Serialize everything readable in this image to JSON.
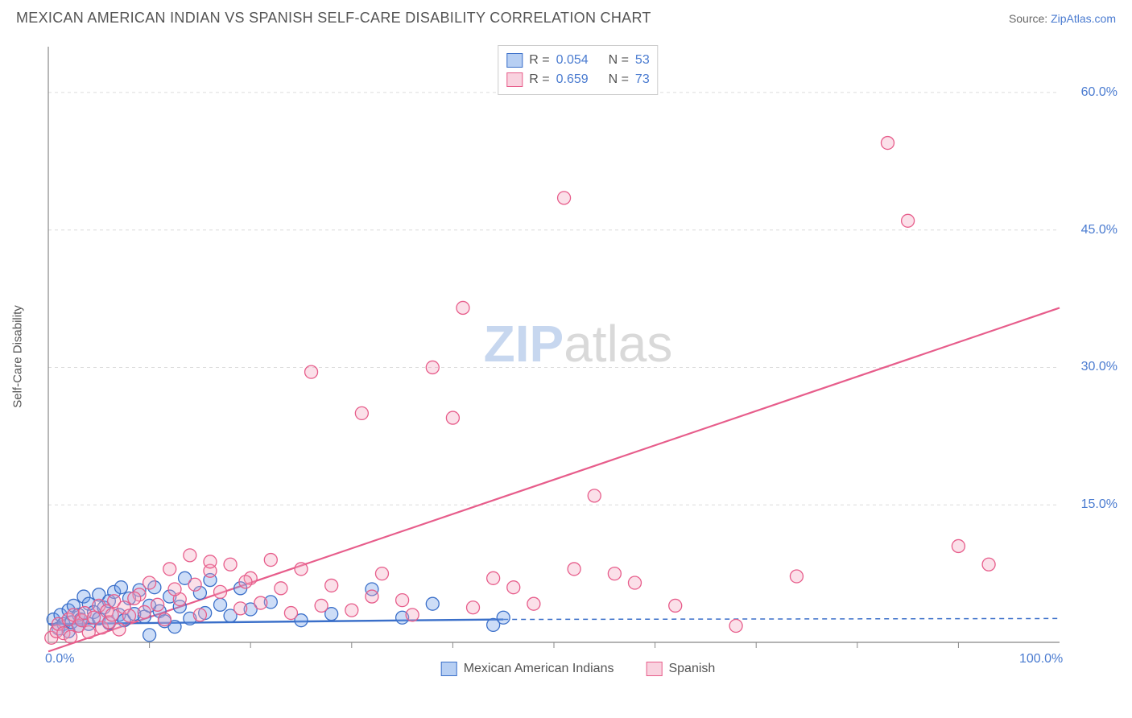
{
  "header": {
    "title": "MEXICAN AMERICAN INDIAN VS SPANISH SELF-CARE DISABILITY CORRELATION CHART",
    "source_label": "Source:",
    "source_name": "ZipAtlas.com"
  },
  "ylabel": "Self-Care Disability",
  "watermark": {
    "a": "ZIP",
    "b": "atlas"
  },
  "chart": {
    "type": "scatter",
    "xlim": [
      0,
      100
    ],
    "ylim": [
      0,
      65
    ],
    "ytick_values": [
      15,
      30,
      45,
      60
    ],
    "ytick_labels": [
      "15.0%",
      "30.0%",
      "45.0%",
      "60.0%"
    ],
    "xtick_values": [
      0,
      100
    ],
    "xtick_labels": [
      "0.0%",
      "100.0%"
    ],
    "xtick_minor": [
      10,
      20,
      30,
      40,
      50,
      60,
      70,
      80,
      90
    ],
    "grid_color": "#dcdcdc",
    "axis_color": "#888888",
    "background_color": "#ffffff",
    "marker_radius": 8,
    "marker_stroke_width": 1.3,
    "marker_fill_opacity": 0.35,
    "series": [
      {
        "id": "mexican",
        "label": "Mexican American Indians",
        "color_fill": "#6f9fe8",
        "color_stroke": "#3a6fc9",
        "R_label": "R =",
        "R_value": "0.054",
        "N_label": "N =",
        "N_value": "53",
        "trend": {
          "x1": 0,
          "y1": 2.0,
          "x2": 45,
          "y2": 2.5,
          "width": 2.4,
          "dash_x2": 100,
          "dash_y2": 2.6
        },
        "points": [
          [
            0.5,
            2.5
          ],
          [
            1,
            1.5
          ],
          [
            1.2,
            3
          ],
          [
            1.5,
            2
          ],
          [
            2,
            1.2
          ],
          [
            2,
            3.5
          ],
          [
            2.3,
            2.2
          ],
          [
            2.5,
            4
          ],
          [
            3,
            1.8
          ],
          [
            3,
            3
          ],
          [
            3.2,
            2.5
          ],
          [
            3.5,
            5
          ],
          [
            4,
            2
          ],
          [
            4,
            4.2
          ],
          [
            4.5,
            3.3
          ],
          [
            5,
            2.6
          ],
          [
            5,
            5.2
          ],
          [
            5.5,
            3.8
          ],
          [
            6,
            2.1
          ],
          [
            6,
            4.5
          ],
          [
            6.5,
            5.5
          ],
          [
            7,
            3
          ],
          [
            7.2,
            6
          ],
          [
            7.5,
            2.4
          ],
          [
            8,
            4.8
          ],
          [
            8.5,
            3.1
          ],
          [
            9,
            5.7
          ],
          [
            9.5,
            2.8
          ],
          [
            10,
            4
          ],
          [
            10,
            0.8
          ],
          [
            10.5,
            6
          ],
          [
            11,
            3.4
          ],
          [
            11.5,
            2.3
          ],
          [
            12,
            5
          ],
          [
            12.5,
            1.7
          ],
          [
            13,
            3.9
          ],
          [
            13.5,
            7
          ],
          [
            14,
            2.6
          ],
          [
            15,
            5.4
          ],
          [
            15.5,
            3.2
          ],
          [
            16,
            6.8
          ],
          [
            17,
            4.1
          ],
          [
            18,
            2.9
          ],
          [
            19,
            5.9
          ],
          [
            20,
            3.6
          ],
          [
            22,
            4.4
          ],
          [
            25,
            2.4
          ],
          [
            28,
            3.1
          ],
          [
            32,
            5.8
          ],
          [
            35,
            2.7
          ],
          [
            38,
            4.2
          ],
          [
            44,
            1.9
          ],
          [
            45,
            2.7
          ]
        ]
      },
      {
        "id": "spanish",
        "label": "Spanish",
        "color_fill": "#f4a6bf",
        "color_stroke": "#e75d8b",
        "R_label": "R =",
        "R_value": "0.659",
        "N_label": "N =",
        "N_value": "73",
        "trend": {
          "x1": 0,
          "y1": -1,
          "x2": 100,
          "y2": 36.5,
          "width": 2.2
        },
        "points": [
          [
            0.3,
            0.5
          ],
          [
            0.8,
            1.2
          ],
          [
            1,
            2
          ],
          [
            1.5,
            1
          ],
          [
            2,
            2.5
          ],
          [
            2.2,
            0.6
          ],
          [
            2.5,
            3
          ],
          [
            3,
            1.8
          ],
          [
            3.3,
            2.4
          ],
          [
            3.6,
            3.2
          ],
          [
            4,
            1.1
          ],
          [
            4.5,
            2.7
          ],
          [
            5,
            4
          ],
          [
            5.3,
            1.6
          ],
          [
            5.8,
            3.4
          ],
          [
            6,
            2.2
          ],
          [
            6.5,
            4.5
          ],
          [
            7,
            1.4
          ],
          [
            7.5,
            3.8
          ],
          [
            8,
            2.9
          ],
          [
            9,
            5.2
          ],
          [
            9.5,
            3.3
          ],
          [
            10,
            6.5
          ],
          [
            10.8,
            4.1
          ],
          [
            11.5,
            2.5
          ],
          [
            12,
            8.0
          ],
          [
            13,
            4.7
          ],
          [
            14,
            9.5
          ],
          [
            14.5,
            6.3
          ],
          [
            15,
            3.0
          ],
          [
            16,
            7.8
          ],
          [
            17,
            5.5
          ],
          [
            18,
            8.5
          ],
          [
            19,
            3.7
          ],
          [
            20,
            7.0
          ],
          [
            21,
            4.3
          ],
          [
            22,
            9.0
          ],
          [
            23,
            5.9
          ],
          [
            24,
            3.2
          ],
          [
            25,
            8.0
          ],
          [
            26,
            29.5
          ],
          [
            27,
            4.0
          ],
          [
            28,
            6.2
          ],
          [
            30,
            3.5
          ],
          [
            31,
            25.0
          ],
          [
            32,
            5.0
          ],
          [
            33,
            7.5
          ],
          [
            35,
            4.6
          ],
          [
            36,
            3.0
          ],
          [
            38,
            30.0
          ],
          [
            40,
            24.5
          ],
          [
            41,
            36.5
          ],
          [
            42,
            3.8
          ],
          [
            44,
            7.0
          ],
          [
            46,
            6.0
          ],
          [
            48,
            4.2
          ],
          [
            51,
            48.5
          ],
          [
            52,
            8.0
          ],
          [
            54,
            16.0
          ],
          [
            56,
            7.5
          ],
          [
            58,
            6.5
          ],
          [
            62,
            4.0
          ],
          [
            68,
            1.8
          ],
          [
            74,
            7.2
          ],
          [
            83,
            54.5
          ],
          [
            85,
            46.0
          ],
          [
            90,
            10.5
          ],
          [
            93,
            8.5
          ],
          [
            16,
            8.8
          ],
          [
            12.5,
            5.8
          ],
          [
            8.5,
            4.8
          ],
          [
            6.3,
            3.0
          ],
          [
            19.5,
            6.6
          ]
        ]
      }
    ]
  },
  "legend_top": {
    "title": ""
  },
  "legend_bottom": {}
}
